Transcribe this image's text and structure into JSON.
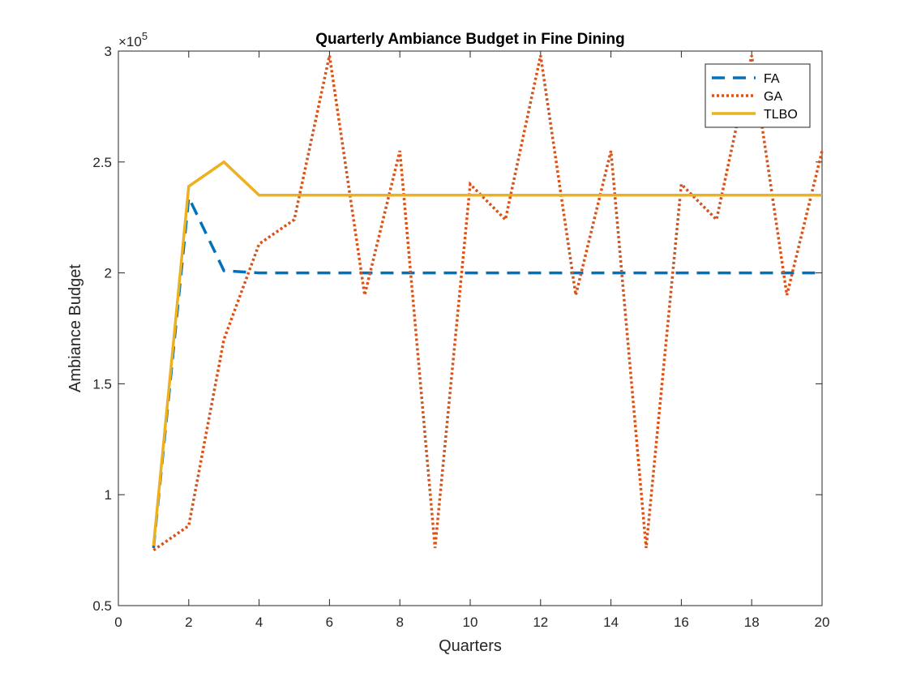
{
  "chart_data": {
    "type": "line",
    "title": "Quarterly Ambiance Budget in Fine Dining",
    "xlabel": "Quarters",
    "ylabel": "Ambiance Budget",
    "y_exponent_label": "×10",
    "y_exponent_power": "5",
    "xlim": [
      0,
      20
    ],
    "ylim": [
      0.5,
      3
    ],
    "y_scale_factor": 100000,
    "x_ticks": [
      0,
      2,
      4,
      6,
      8,
      10,
      12,
      14,
      16,
      18,
      20
    ],
    "x_tick_labels": [
      "0",
      "2",
      "4",
      "6",
      "8",
      "10",
      "12",
      "14",
      "16",
      "18",
      "20"
    ],
    "y_ticks": [
      0.5,
      1,
      1.5,
      2,
      2.5,
      3
    ],
    "y_tick_labels": [
      "0.5",
      "1",
      "1.5",
      "2",
      "2.5",
      "3"
    ],
    "grid": false,
    "legend_position": "top-right",
    "x": [
      1,
      2,
      3,
      4,
      5,
      6,
      7,
      8,
      9,
      10,
      11,
      12,
      13,
      14,
      15,
      16,
      17,
      18,
      19,
      20
    ],
    "series": [
      {
        "name": "FA",
        "color": "#0072BD",
        "style": "dashed",
        "values": [
          0.76,
          2.34,
          2.01,
          2.0,
          2.0,
          2.0,
          2.0,
          2.0,
          2.0,
          2.0,
          2.0,
          2.0,
          2.0,
          2.0,
          2.0,
          2.0,
          2.0,
          2.0,
          2.0,
          2.0
        ]
      },
      {
        "name": "GA",
        "color": "#D95319",
        "style": "dotted",
        "values": [
          0.75,
          0.86,
          1.7,
          2.13,
          2.24,
          2.98,
          1.9,
          2.55,
          0.76,
          2.4,
          2.24,
          2.98,
          1.9,
          2.55,
          0.76,
          2.4,
          2.24,
          2.98,
          1.9,
          2.55
        ]
      },
      {
        "name": "TLBO",
        "color": "#EDB120",
        "style": "solid",
        "values": [
          0.77,
          2.39,
          2.5,
          2.35,
          2.35,
          2.35,
          2.35,
          2.35,
          2.35,
          2.35,
          2.35,
          2.35,
          2.35,
          2.35,
          2.35,
          2.35,
          2.35,
          2.35,
          2.35,
          2.35
        ]
      }
    ]
  }
}
